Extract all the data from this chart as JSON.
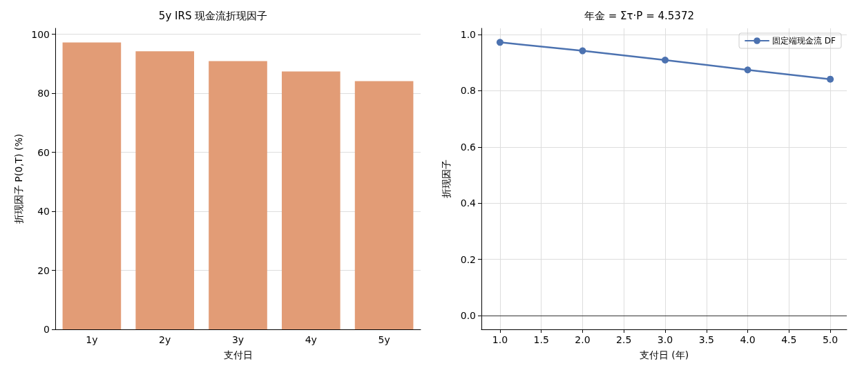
{
  "chart_data": [
    {
      "type": "bar",
      "title": "5y IRS 现金流折现因子",
      "xlabel": "支付日",
      "ylabel": "折现因子 P(0,T) (%)",
      "categories": [
        "1y",
        "2y",
        "3y",
        "4y",
        "5y"
      ],
      "values": [
        97.2,
        94.2,
        90.9,
        87.4,
        84.1
      ],
      "color": "#e29c76",
      "ylim": [
        0,
        102
      ],
      "yticks": [
        0,
        20,
        40,
        60,
        80,
        100
      ],
      "grid": "y",
      "legend": false
    },
    {
      "type": "line",
      "title": "年金 = Στ·P = 4.5372",
      "xlabel": "支付日 (年)",
      "ylabel": "折现因子",
      "x": [
        1,
        2,
        3,
        4,
        5
      ],
      "series": [
        {
          "name": "固定端现金流 DF",
          "color": "#4c72b0",
          "values": [
            0.972,
            0.942,
            0.909,
            0.874,
            0.841
          ]
        }
      ],
      "xlim": [
        0.775,
        5.2
      ],
      "xticks": [
        {
          "value": 1,
          "label": "1.0"
        },
        {
          "value": 1.5,
          "label": "1.5"
        },
        {
          "value": 2,
          "label": "2.0"
        },
        {
          "value": 2.5,
          "label": "2.5"
        },
        {
          "value": 3,
          "label": "3.0"
        },
        {
          "value": 3.5,
          "label": "3.5"
        },
        {
          "value": 4,
          "label": "4.0"
        },
        {
          "value": 4.5,
          "label": "4.5"
        },
        {
          "value": 5,
          "label": "5.0"
        }
      ],
      "ylim": [
        -0.049,
        1.022
      ],
      "yticks": [
        {
          "value": 0,
          "label": "0.0"
        },
        0.2,
        0.4,
        0.6,
        0.8,
        {
          "value": 1,
          "label": "1.0"
        }
      ],
      "grid": true,
      "legend": "top right",
      "marker": "circle",
      "line_style": "solid",
      "ref_lines": [
        {
          "axis": "y",
          "value": 0,
          "color": "#333333"
        }
      ]
    }
  ]
}
